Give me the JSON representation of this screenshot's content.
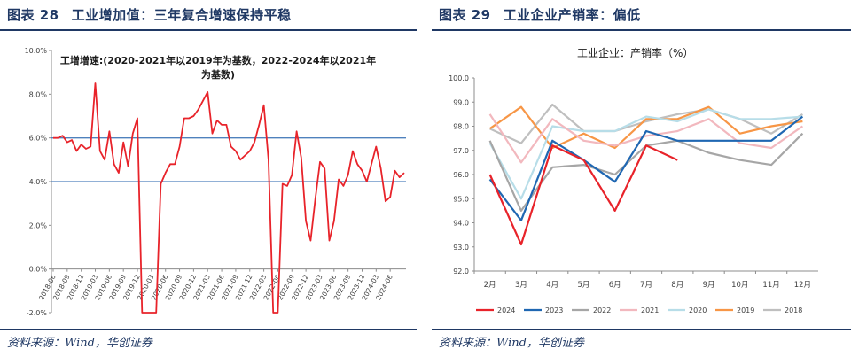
{
  "left": {
    "title_number": "图表 28",
    "title_text": "工业增加值：三年复合增速保持平稳",
    "source": "资料来源：Wind，华创证券",
    "chart_data": {
      "type": "line",
      "title_line1": "工增增速:(2020-2021年以2019年为基数，2022-2024年以2021年",
      "title_line2": "为基数)",
      "ylim": [
        -2.0,
        10.0
      ],
      "y_ticks": [
        "-2.0%",
        "0.0%",
        "2.0%",
        "4.0%",
        "6.0%",
        "8.0%",
        "10.0%"
      ],
      "y_tick_values": [
        -2,
        0,
        2,
        4,
        6,
        8,
        10
      ],
      "x_tick_labels": [
        "2018-06",
        "2018-09",
        "2018-12",
        "2019-03",
        "2019-06",
        "2019-09",
        "2019-12",
        "2020-03",
        "2020-06",
        "2020-09",
        "2020-12",
        "2021-03",
        "2021-06",
        "2021-09",
        "2021-12",
        "2022-03",
        "2022-06",
        "2022-09",
        "2022-12",
        "2023-03",
        "2023-06",
        "2023-09",
        "2023-12",
        "2024-03",
        "2024-06"
      ],
      "x_tick_index": [
        0,
        3,
        6,
        9,
        12,
        15,
        18,
        21,
        24,
        27,
        30,
        33,
        36,
        39,
        42,
        45,
        48,
        51,
        54,
        57,
        60,
        63,
        66,
        69,
        72
      ],
      "reference_lines": [
        6.0,
        4.0
      ],
      "series_color": "#e8232a",
      "ref_color": "#4f81bd",
      "values": [
        6.0,
        6.0,
        6.1,
        5.8,
        5.9,
        5.4,
        5.7,
        5.5,
        5.6,
        8.5,
        5.4,
        5.0,
        6.3,
        4.8,
        4.4,
        5.8,
        4.7,
        6.2,
        6.9,
        -2.0,
        -2.0,
        -2.0,
        -2.0,
        3.9,
        4.4,
        4.8,
        4.8,
        5.6,
        6.9,
        6.9,
        7.0,
        7.3,
        7.7,
        8.1,
        6.2,
        6.8,
        6.6,
        6.6,
        5.6,
        5.4,
        5.0,
        5.2,
        5.4,
        5.8,
        6.6,
        7.5,
        5.0,
        -2.0,
        -2.0,
        3.9,
        3.8,
        4.3,
        6.3,
        5.1,
        2.2,
        1.3,
        3.2,
        4.9,
        4.6,
        1.3,
        2.2,
        4.1,
        3.8,
        4.3,
        5.4,
        4.8,
        4.5,
        4.0,
        4.8,
        5.6,
        4.6,
        3.1,
        3.3,
        4.5,
        4.2,
        4.4
      ]
    }
  },
  "right": {
    "title_number": "图表 29",
    "title_text": "工业企业产销率：偏低",
    "source": "资料来源：Wind，华创证券",
    "chart_data": {
      "type": "line",
      "title": "工业企业：产销率（%）",
      "categories": [
        "2月",
        "3月",
        "4月",
        "5月",
        "6月",
        "7月",
        "8月",
        "9月",
        "10月",
        "11月",
        "12月"
      ],
      "ylim": [
        92.0,
        100.0
      ],
      "y_ticks": [
        "92.0",
        "93.0",
        "94.0",
        "95.0",
        "96.0",
        "97.0",
        "98.0",
        "99.0",
        "100.0"
      ],
      "y_tick_values": [
        92,
        93,
        94,
        95,
        96,
        97,
        98,
        99,
        100
      ],
      "series": [
        {
          "name": "2024",
          "color": "#e8232a",
          "values": [
            96.0,
            93.1,
            97.2,
            96.6,
            94.5,
            97.2,
            96.6,
            null,
            null,
            null,
            null
          ]
        },
        {
          "name": "2023",
          "color": "#1f67b2",
          "values": [
            95.8,
            94.1,
            97.4,
            96.6,
            95.7,
            97.8,
            97.4,
            97.4,
            97.4,
            97.4,
            98.4
          ]
        },
        {
          "name": "2022",
          "color": "#a6a6a6",
          "values": [
            97.4,
            94.5,
            96.3,
            96.4,
            96.0,
            97.2,
            97.4,
            96.9,
            96.6,
            96.4,
            97.7
          ]
        },
        {
          "name": "2021",
          "color": "#f2b8be",
          "values": [
            98.5,
            96.5,
            98.3,
            97.4,
            97.2,
            97.6,
            97.8,
            98.3,
            97.3,
            97.1,
            98.0
          ]
        },
        {
          "name": "2020",
          "color": "#b7dde8",
          "values": [
            97.3,
            95.0,
            98.0,
            97.8,
            97.8,
            98.4,
            98.2,
            98.7,
            98.3,
            98.3,
            98.4
          ]
        },
        {
          "name": "2019",
          "color": "#f79646",
          "values": [
            97.9,
            98.8,
            97.1,
            97.7,
            97.1,
            98.3,
            98.3,
            98.8,
            97.7,
            98.0,
            98.2
          ]
        },
        {
          "name": "2018",
          "color": "#bfbfbf",
          "values": [
            97.9,
            97.3,
            98.9,
            97.8,
            97.8,
            98.2,
            98.5,
            98.7,
            98.3,
            97.7,
            98.5
          ]
        }
      ]
    }
  }
}
